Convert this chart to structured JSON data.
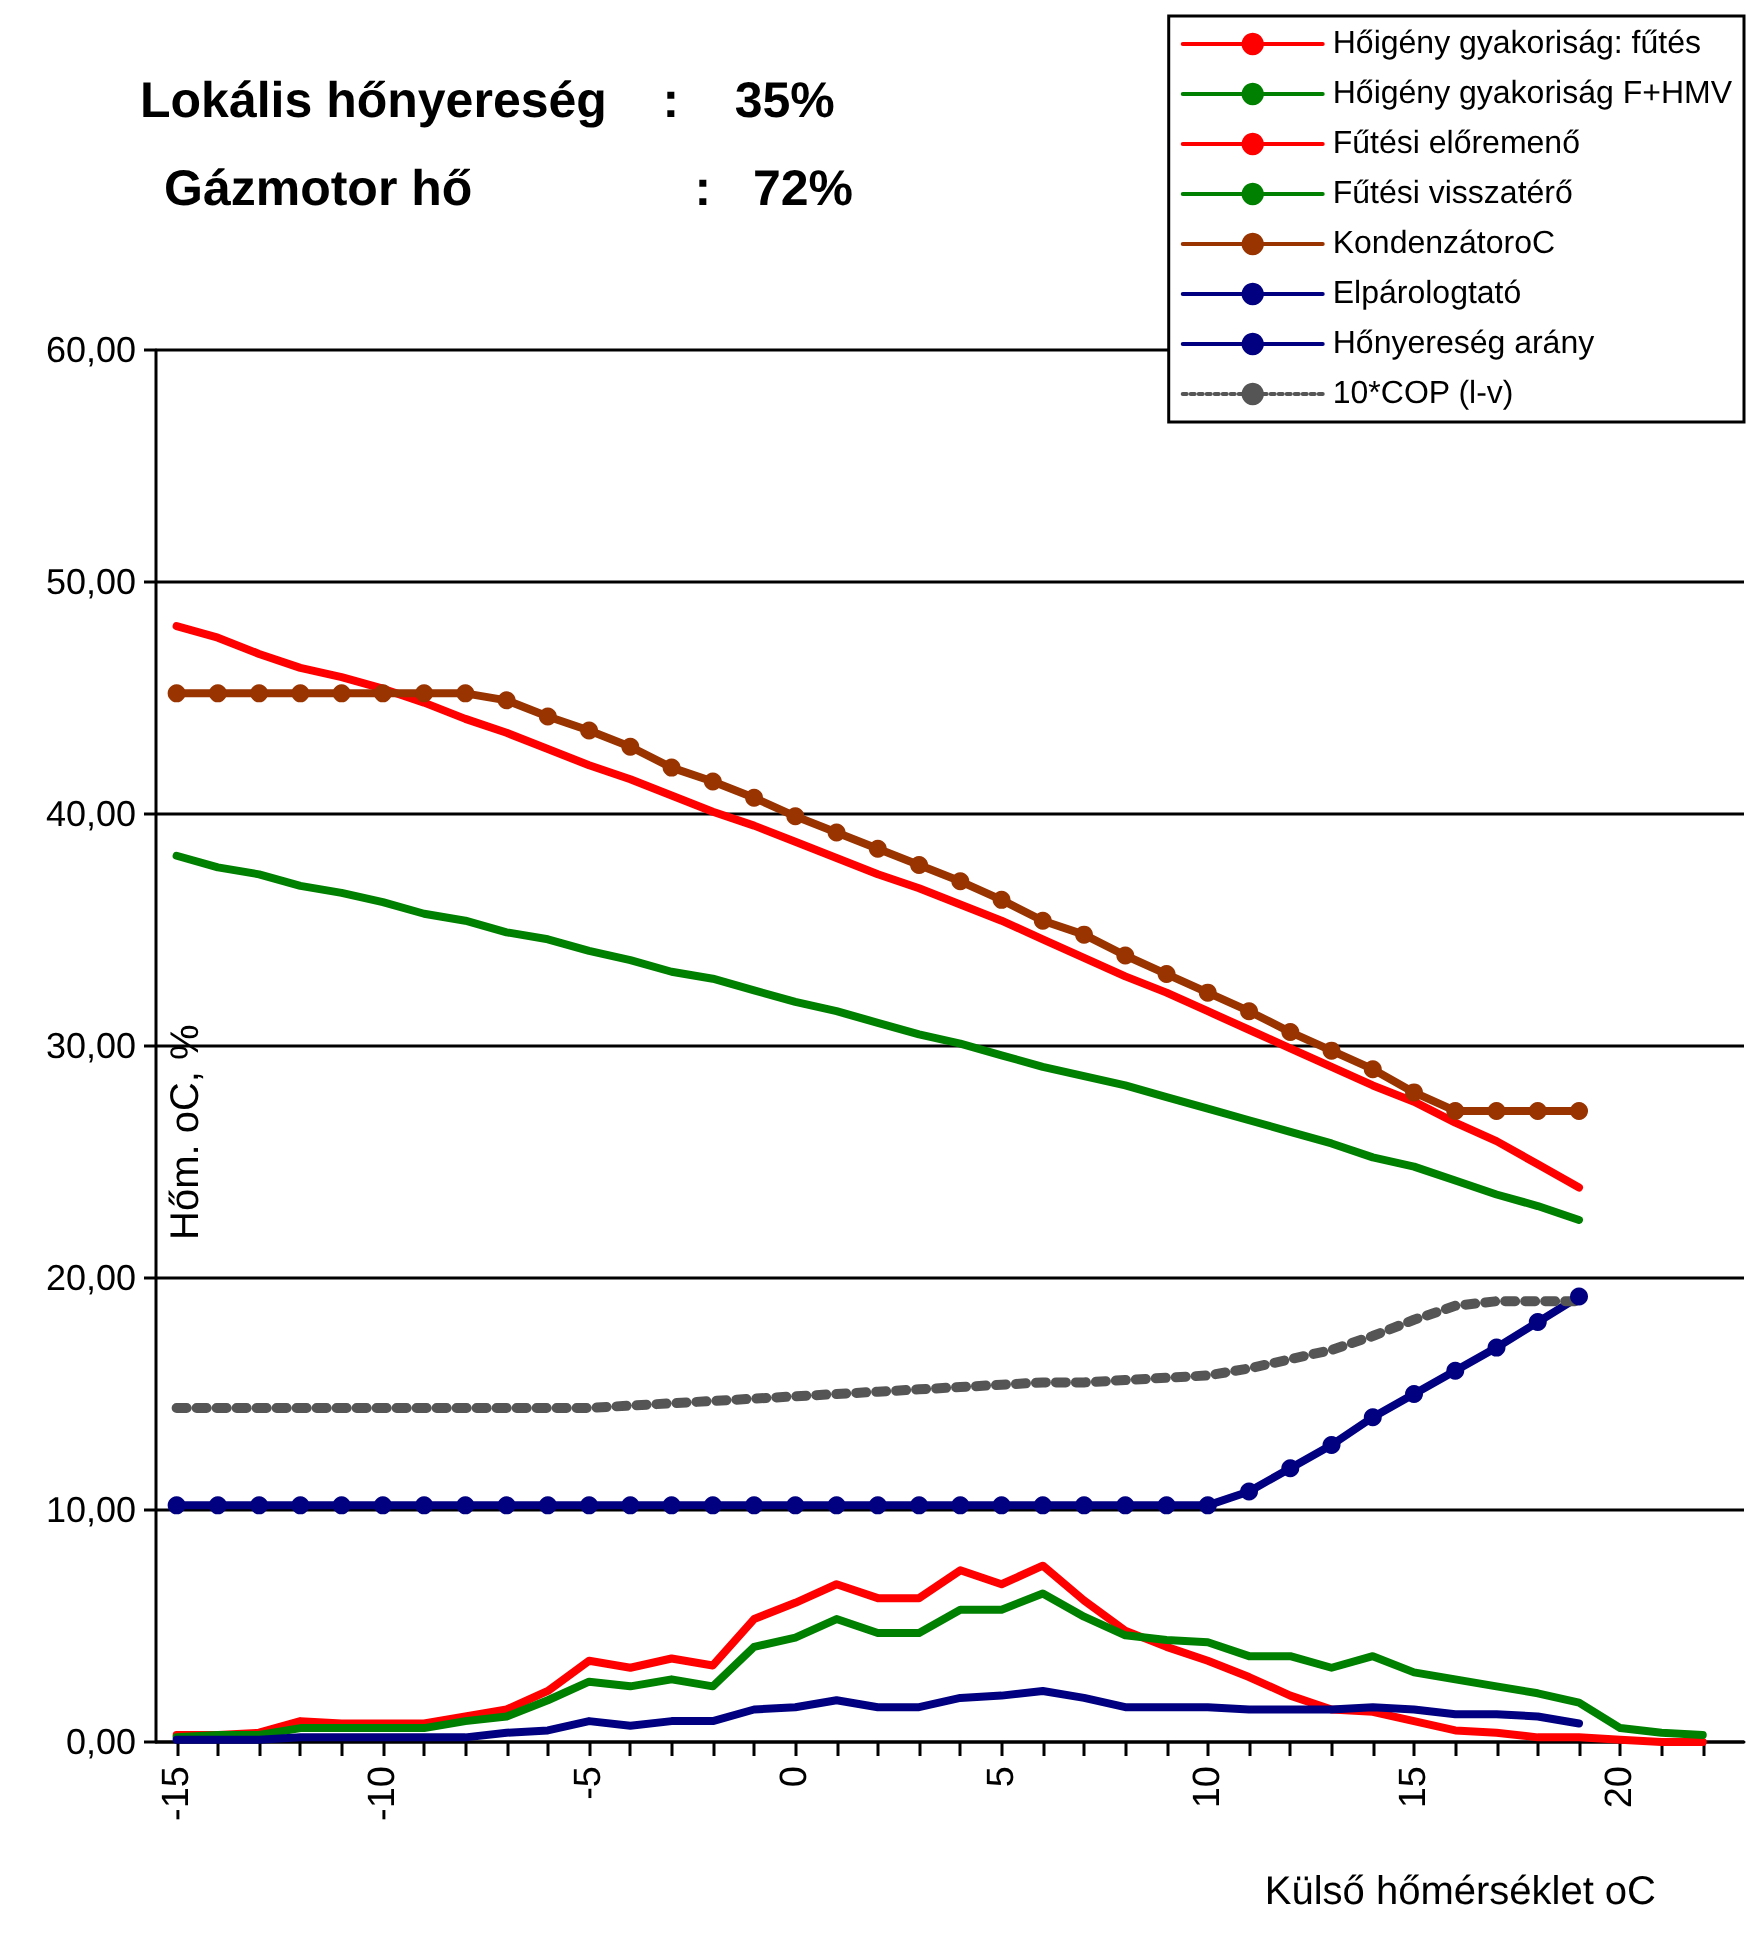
{
  "chart_data": {
    "type": "line",
    "annotations": [
      "Lokális hőnyereség    :    35%",
      "Gázmotor hő                :   72%"
    ],
    "xlabel": "Külső hőmérséklet oC",
    "ylabel": "Hőm. oC, %",
    "x": [
      -15,
      -14,
      -13,
      -12,
      -11,
      -10,
      -9,
      -8,
      -7,
      -6,
      -5,
      -4,
      -3,
      -2,
      -1,
      0,
      1,
      2,
      3,
      4,
      5,
      6,
      7,
      8,
      9,
      10,
      11,
      12,
      13,
      14,
      15,
      16,
      17,
      18,
      19
    ],
    "series": [
      {
        "name": "Hőigény gyakoriság: fűtés",
        "color": "#ff0000",
        "marker": "none",
        "x": [
          -15,
          -14,
          -13,
          -12,
          -11,
          -10,
          -9,
          -8,
          -7,
          -6,
          -5,
          -4,
          -3,
          -2,
          -1,
          0,
          1,
          2,
          3,
          4,
          5,
          6,
          7,
          8,
          9,
          10,
          11,
          12,
          13,
          14,
          15,
          16,
          17,
          18,
          19,
          20,
          21,
          22
        ],
        "values": [
          0.3,
          0.3,
          0.4,
          0.9,
          0.8,
          0.8,
          0.8,
          1.1,
          1.4,
          2.2,
          3.5,
          3.2,
          3.6,
          3.3,
          5.3,
          6.0,
          6.8,
          6.2,
          6.2,
          7.4,
          6.8,
          7.6,
          6.1,
          4.8,
          4.1,
          3.5,
          2.8,
          2.0,
          1.4,
          1.3,
          0.9,
          0.5,
          0.4,
          0.2,
          0.2,
          0.1,
          0.0,
          0.0
        ]
      },
      {
        "name": "Hőigény gyakoriság F+HMV",
        "color": "#008000",
        "marker": "none",
        "x": [
          -15,
          -14,
          -13,
          -12,
          -11,
          -10,
          -9,
          -8,
          -7,
          -6,
          -5,
          -4,
          -3,
          -2,
          -1,
          0,
          1,
          2,
          3,
          4,
          5,
          6,
          7,
          8,
          9,
          10,
          11,
          12,
          13,
          14,
          15,
          16,
          17,
          18,
          19,
          20,
          21,
          22
        ],
        "values": [
          0.2,
          0.3,
          0.3,
          0.6,
          0.6,
          0.6,
          0.6,
          0.9,
          1.1,
          1.8,
          2.6,
          2.4,
          2.7,
          2.4,
          4.1,
          4.5,
          5.3,
          4.7,
          4.7,
          5.7,
          5.7,
          6.4,
          5.4,
          4.6,
          4.4,
          4.3,
          3.7,
          3.7,
          3.2,
          3.7,
          3.0,
          2.7,
          2.4,
          2.1,
          1.7,
          0.6,
          0.4,
          0.3
        ]
      },
      {
        "name": "Fűtési előremenő",
        "color": "#ff0000",
        "marker": "none",
        "values": [
          48.1,
          47.6,
          46.9,
          46.3,
          45.9,
          45.4,
          44.8,
          44.1,
          43.5,
          42.8,
          42.1,
          41.5,
          40.8,
          40.1,
          39.5,
          38.8,
          38.1,
          37.4,
          36.8,
          36.1,
          35.4,
          34.6,
          33.8,
          33.0,
          32.3,
          31.5,
          30.7,
          29.9,
          29.1,
          28.3,
          27.6,
          26.7,
          25.9,
          24.9,
          23.9
        ]
      },
      {
        "name": "Fűtési visszatérő",
        "color": "#008000",
        "marker": "none",
        "values": [
          38.2,
          37.7,
          37.4,
          36.9,
          36.6,
          36.2,
          35.7,
          35.4,
          34.9,
          34.6,
          34.1,
          33.7,
          33.2,
          32.9,
          32.4,
          31.9,
          31.5,
          31.0,
          30.5,
          30.1,
          29.6,
          29.1,
          28.7,
          28.3,
          27.8,
          27.3,
          26.8,
          26.3,
          25.8,
          25.2,
          24.8,
          24.2,
          23.6,
          23.1,
          22.5
        ]
      },
      {
        "name": "KondenzátoroC",
        "color": "#993300",
        "marker": "circle",
        "values": [
          45.2,
          45.2,
          45.2,
          45.2,
          45.2,
          45.2,
          45.2,
          45.2,
          44.9,
          44.2,
          43.6,
          42.9,
          42.0,
          41.4,
          40.7,
          39.9,
          39.2,
          38.5,
          37.8,
          37.1,
          36.3,
          35.4,
          34.8,
          33.9,
          33.1,
          32.3,
          31.5,
          30.6,
          29.8,
          29.0,
          28.0,
          27.2,
          27.2,
          27.2,
          27.2
        ]
      },
      {
        "name": "Elpárologtató",
        "color": "#000080",
        "marker": "circle",
        "values": [
          10.2,
          10.2,
          10.2,
          10.2,
          10.2,
          10.2,
          10.2,
          10.2,
          10.2,
          10.2,
          10.2,
          10.2,
          10.2,
          10.2,
          10.2,
          10.2,
          10.2,
          10.2,
          10.2,
          10.2,
          10.2,
          10.2,
          10.2,
          10.2,
          10.2,
          10.2,
          10.8,
          11.8,
          12.8,
          14.0,
          15.0,
          16.0,
          17.0,
          18.1,
          19.2
        ]
      },
      {
        "name": "Hőnyereség arány",
        "color": "#000080",
        "marker": "none",
        "values": [
          0.1,
          0.1,
          0.1,
          0.2,
          0.2,
          0.2,
          0.2,
          0.2,
          0.4,
          0.5,
          0.9,
          0.7,
          0.9,
          0.9,
          1.4,
          1.5,
          1.8,
          1.5,
          1.5,
          1.9,
          2.0,
          2.2,
          1.9,
          1.5,
          1.5,
          1.5,
          1.4,
          1.4,
          1.4,
          1.5,
          1.4,
          1.2,
          1.2,
          1.1,
          0.8
        ]
      },
      {
        "name": "10*COP (l-v)",
        "color": "#555555",
        "marker": "none",
        "line_style": "dotted",
        "values": [
          14.4,
          14.4,
          14.4,
          14.4,
          14.4,
          14.4,
          14.4,
          14.4,
          14.4,
          14.4,
          14.4,
          14.5,
          14.6,
          14.7,
          14.8,
          14.9,
          15.0,
          15.1,
          15.2,
          15.3,
          15.4,
          15.5,
          15.5,
          15.6,
          15.7,
          15.8,
          16.1,
          16.5,
          16.9,
          17.5,
          18.2,
          18.8,
          19.0,
          19.0,
          19.0
        ]
      }
    ],
    "xlim": [
      -15.5,
      23
    ],
    "xticks": [
      -15,
      {
        "value": -14,
        "label": null
      },
      {
        "value": -13,
        "label": null
      },
      {
        "value": -12,
        "label": null
      },
      {
        "value": -11,
        "label": null
      },
      -10,
      {
        "value": -9,
        "label": null
      },
      {
        "value": -8,
        "label": null
      },
      {
        "value": -7,
        "label": null
      },
      {
        "value": -6,
        "label": null
      },
      -5,
      {
        "value": -4,
        "label": null
      },
      {
        "value": -3,
        "label": null
      },
      {
        "value": -2,
        "label": null
      },
      {
        "value": -1,
        "label": null
      },
      0,
      {
        "value": 1,
        "label": null
      },
      {
        "value": 2,
        "label": null
      },
      {
        "value": 3,
        "label": null
      },
      {
        "value": 4,
        "label": null
      },
      5,
      {
        "value": 6,
        "label": null
      },
      {
        "value": 7,
        "label": null
      },
      {
        "value": 8,
        "label": null
      },
      {
        "value": 9,
        "label": null
      },
      10,
      {
        "value": 11,
        "label": null
      },
      {
        "value": 12,
        "label": null
      },
      {
        "value": 13,
        "label": null
      },
      {
        "value": 14,
        "label": null
      },
      15,
      {
        "value": 16,
        "label": null
      },
      {
        "value": 17,
        "label": null
      },
      {
        "value": 18,
        "label": null
      },
      {
        "value": 19,
        "label": null
      },
      20,
      {
        "value": 21,
        "label": null
      },
      {
        "value": 22,
        "label": null
      }
    ],
    "ylim": [
      0,
      60
    ],
    "yticks": [
      {
        "value": 0,
        "label": "0,00"
      },
      {
        "value": 10,
        "label": "10,00"
      },
      {
        "value": 20,
        "label": "20,00"
      },
      {
        "value": 30,
        "label": "30,00"
      },
      {
        "value": 40,
        "label": "40,00"
      },
      {
        "value": 50,
        "label": "50,00"
      },
      {
        "value": 60,
        "label": "60,00"
      }
    ],
    "grid": "y",
    "legend": "top right"
  }
}
